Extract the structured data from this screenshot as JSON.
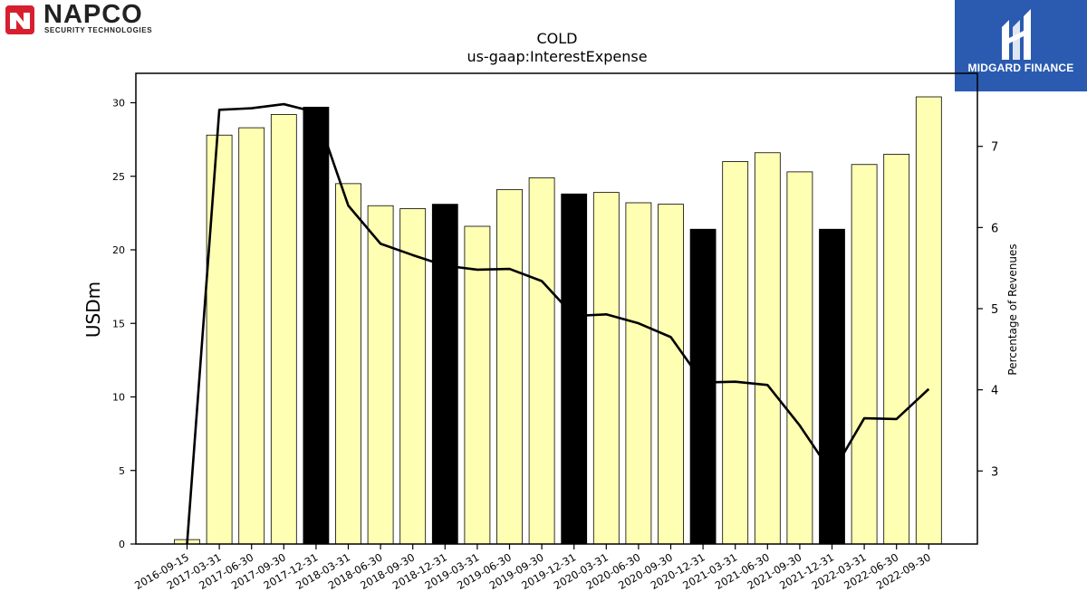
{
  "logos": {
    "left_brand": "NAPCO",
    "left_tagline": "SECURITY TECHNOLOGIES",
    "right_brand": "MIDGARD FINANCE"
  },
  "colors": {
    "bar_default": "#ffffb3",
    "bar_highlight": "#000000",
    "line": "#000000",
    "napco_red": "#d62030",
    "midgard_blue": "#2b5bb0"
  },
  "chart_data": {
    "type": "bar",
    "title": "COLD",
    "subtitle": "us-gaap:InterestExpense",
    "ylabel": "USDm",
    "y2label": "Percentage of Revenues",
    "ylim": [
      0,
      32
    ],
    "y2lim": [
      2.1,
      7.9
    ],
    "yticks": [
      0,
      5,
      10,
      15,
      20,
      25,
      30
    ],
    "y2ticks": [
      3,
      4,
      5,
      6,
      7
    ],
    "grid": false,
    "categories": [
      "2016-09-15",
      "2017-03-31",
      "2017-06-30",
      "2017-09-30",
      "2017-12-31",
      "2018-03-31",
      "2018-06-30",
      "2018-09-30",
      "2018-12-31",
      "2019-03-31",
      "2019-06-30",
      "2019-09-30",
      "2019-12-31",
      "2020-03-31",
      "2020-06-30",
      "2020-09-30",
      "2020-12-31",
      "2021-03-31",
      "2021-06-30",
      "2021-09-30",
      "2021-12-31",
      "2022-03-31",
      "2022-06-30",
      "2022-09-30"
    ],
    "series": [
      {
        "kind": "bar",
        "axis": "left",
        "values": [
          0.3,
          27.8,
          28.3,
          29.2,
          29.7,
          24.5,
          23.0,
          22.8,
          23.1,
          21.6,
          24.1,
          24.9,
          23.8,
          23.9,
          23.2,
          23.1,
          21.4,
          26.0,
          26.6,
          25.3,
          21.4,
          25.8,
          26.5,
          30.4
        ],
        "highlight": [
          false,
          false,
          false,
          false,
          true,
          false,
          false,
          false,
          true,
          false,
          false,
          false,
          true,
          false,
          false,
          false,
          true,
          false,
          false,
          false,
          true,
          false,
          false,
          false
        ]
      },
      {
        "kind": "line",
        "axis": "right",
        "values": [
          2.1,
          7.45,
          7.47,
          7.52,
          7.42,
          6.27,
          5.8,
          5.66,
          5.53,
          5.48,
          5.49,
          5.34,
          4.91,
          4.93,
          4.82,
          4.65,
          4.09,
          4.1,
          4.06,
          3.56,
          2.97,
          3.65,
          3.64,
          4.01
        ]
      }
    ]
  }
}
